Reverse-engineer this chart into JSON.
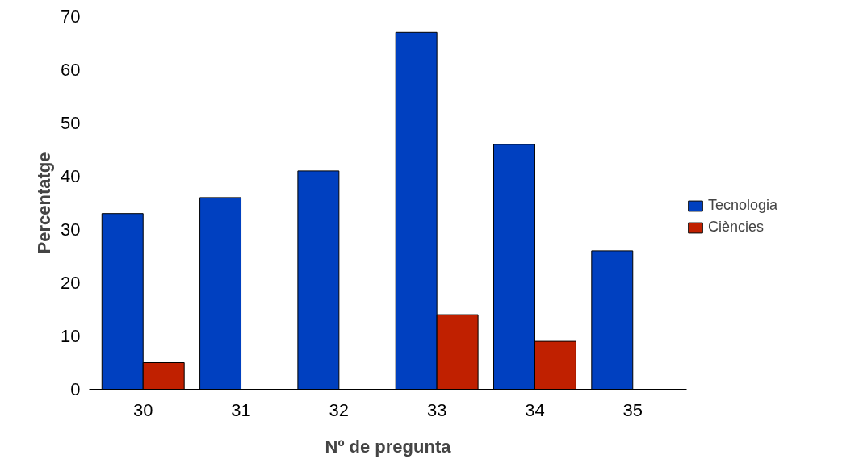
{
  "chart_data": {
    "type": "bar",
    "xlabel": "Nº de pregunta",
    "ylabel": "Percentatge",
    "categories": [
      "30",
      "31",
      "32",
      "33",
      "34",
      "35"
    ],
    "series": [
      {
        "name": "Tecnologia",
        "color": "#0040c0",
        "values": [
          33,
          36,
          41,
          67,
          46,
          26
        ]
      },
      {
        "name": "Ciències",
        "color": "#c02000",
        "values": [
          5,
          0,
          0,
          14,
          9,
          0
        ]
      }
    ],
    "ylim": [
      0,
      70
    ],
    "yticks": [
      0,
      10,
      20,
      30,
      40,
      50,
      60,
      70
    ],
    "grid": false,
    "legend": "right"
  }
}
